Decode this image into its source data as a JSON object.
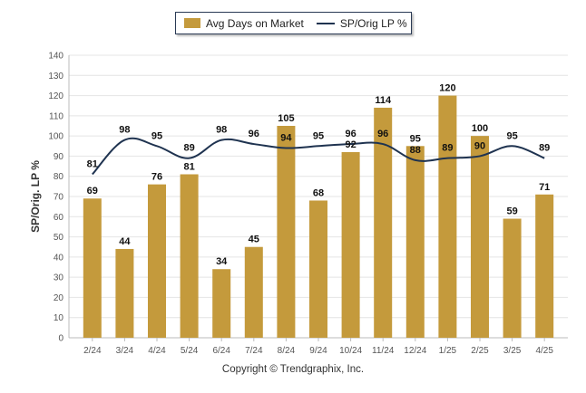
{
  "legend": {
    "bar_label": "Avg Days on Market",
    "line_label": "SP/Orig LP %"
  },
  "copyright": "Copyright © Trendgraphix, Inc.",
  "colors": {
    "bar": "#c49a3c",
    "line": "#1f3350",
    "grid": "#e4e4e4",
    "axis_text": "#555555"
  },
  "chart_data": {
    "type": "bar",
    "title": "",
    "ylabel": "SP/Orig. LP %",
    "xlabel": "",
    "ylim": [
      0,
      140
    ],
    "yticks": [
      0,
      10,
      20,
      30,
      40,
      50,
      60,
      70,
      80,
      90,
      100,
      110,
      120,
      130,
      140
    ],
    "grid": true,
    "legend_position": "top-center",
    "categories": [
      "2/24",
      "3/24",
      "4/24",
      "5/24",
      "6/24",
      "7/24",
      "8/24",
      "9/24",
      "10/24",
      "11/24",
      "12/24",
      "1/25",
      "2/25",
      "3/25",
      "4/25"
    ],
    "series": [
      {
        "name": "Avg Days on Market",
        "type": "bar",
        "values": [
          69,
          44,
          76,
          81,
          34,
          45,
          105,
          68,
          92,
          114,
          95,
          120,
          100,
          59,
          71
        ]
      },
      {
        "name": "SP/Orig LP %",
        "type": "line",
        "values": [
          81,
          98,
          95,
          89,
          98,
          96,
          94,
          95,
          96,
          96,
          88,
          89,
          90,
          95,
          89
        ]
      }
    ]
  }
}
